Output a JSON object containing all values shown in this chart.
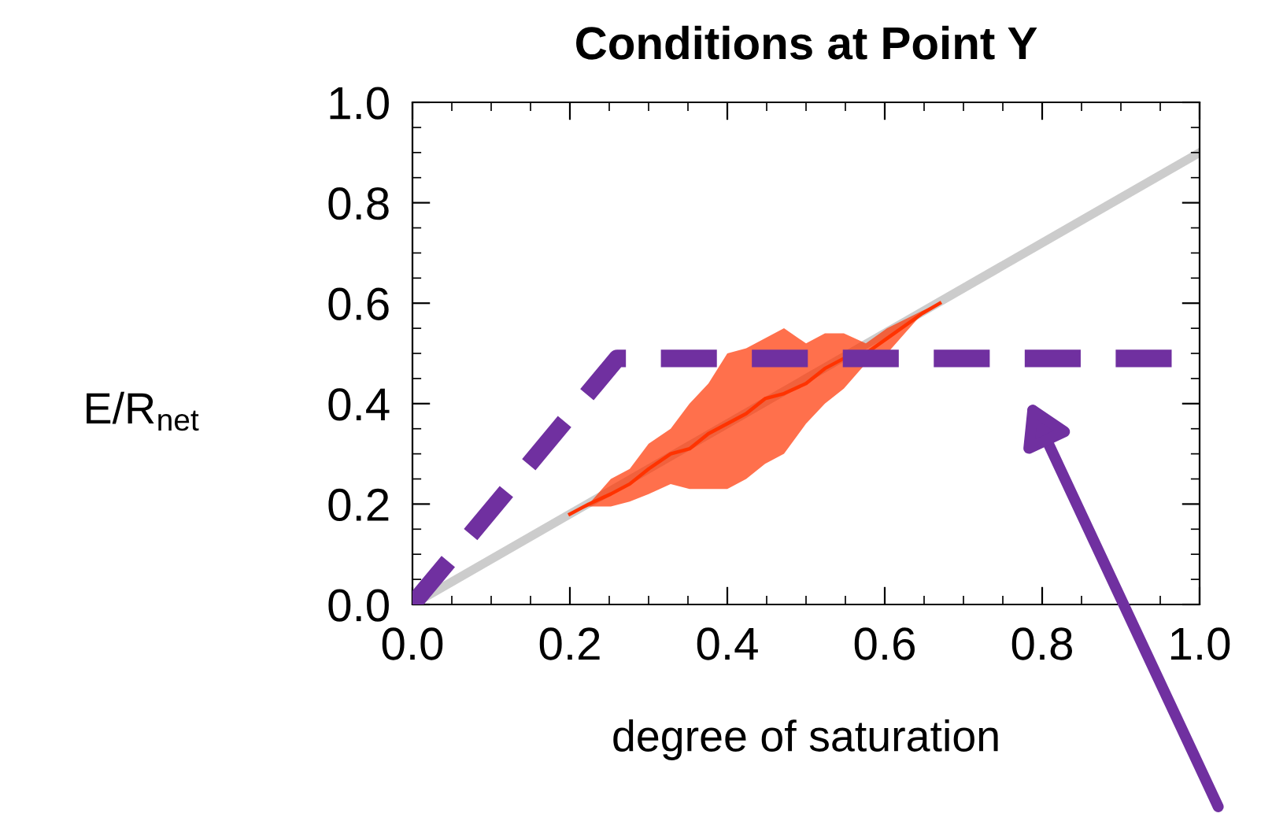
{
  "chart_data": {
    "type": "line",
    "title": "Conditions at Point Y",
    "xlabel": "degree of saturation",
    "ylabel": "E/R$_{net}$",
    "xlim": [
      0,
      1
    ],
    "ylim": [
      0,
      1
    ],
    "xticks": [
      {
        "value": 0,
        "label": "0.0"
      },
      0.2,
      0.4,
      0.6,
      0.8,
      {
        "value": 1,
        "label": "1.0"
      }
    ],
    "yticks": [
      {
        "value": 0,
        "label": "0.0"
      },
      0.2,
      0.4,
      0.6,
      0.8,
      {
        "value": 1,
        "label": "1.0"
      }
    ],
    "series": [
      {
        "color": "#cccccc",
        "x": [
          0,
          1
        ],
        "values": [
          0,
          0.9
        ]
      },
      {
        "type": "line",
        "color": "#ff3300",
        "line_style": "solid",
        "x": [
          0.2,
          0.224,
          0.252,
          0.276,
          0.3,
          0.328,
          0.352,
          0.376,
          0.4,
          0.424,
          0.448,
          0.472,
          0.5,
          0.524,
          0.548,
          0.576,
          0.603,
          0.648,
          0.67
        ],
        "values": [
          0.18,
          0.2,
          0.22,
          0.24,
          0.27,
          0.3,
          0.31,
          0.34,
          0.36,
          0.38,
          0.41,
          0.42,
          0.44,
          0.47,
          0.49,
          0.5,
          0.53,
          0.58,
          0.6
        ],
        "lower": [
          0.18,
          0.195,
          0.195,
          0.205,
          0.22,
          0.24,
          0.23,
          0.23,
          0.23,
          0.25,
          0.28,
          0.3,
          0.36,
          0.4,
          0.43,
          0.48,
          0.5,
          0.58,
          0.6
        ],
        "upper": [
          0.18,
          0.2,
          0.25,
          0.27,
          0.32,
          0.35,
          0.4,
          0.44,
          0.5,
          0.51,
          0.53,
          0.55,
          0.52,
          0.54,
          0.54,
          0.52,
          0.55,
          0.585,
          0.6
        ]
      },
      {
        "color": "#7030a0",
        "line_style": "dashed",
        "x": [
          0,
          0.26,
          1
        ],
        "values": [
          0,
          0.49,
          0.49
        ]
      }
    ]
  }
}
